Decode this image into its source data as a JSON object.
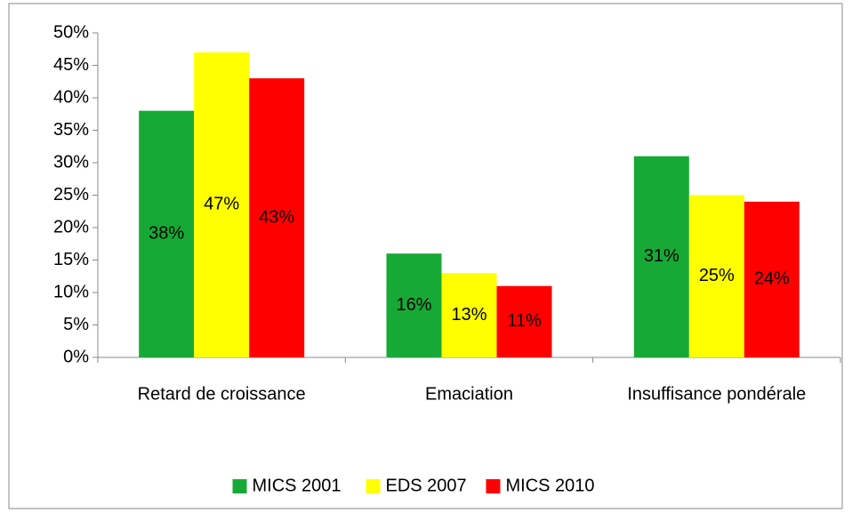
{
  "chart_data": {
    "type": "bar",
    "categories": [
      "Retard de croissance",
      "Emaciation",
      "Insuffisance pondérale"
    ],
    "series": [
      {
        "name": "MICS 2001",
        "color": "#17a935",
        "values": [
          38,
          16,
          31
        ],
        "value_labels": [
          "38%",
          "16%",
          "31%"
        ]
      },
      {
        "name": "EDS 2007",
        "color": "#ffff00",
        "values": [
          47,
          13,
          25
        ],
        "value_labels": [
          "47%",
          "13%",
          "25%"
        ]
      },
      {
        "name": "MICS 2010",
        "color": "#ff0000",
        "values": [
          43,
          11,
          24
        ],
        "value_labels": [
          "43%",
          "11%",
          "24%"
        ]
      }
    ],
    "ylim": [
      0,
      50
    ],
    "yticks": [
      {
        "value": 0,
        "label": "0%"
      },
      {
        "value": 5,
        "label": "5%"
      },
      {
        "value": 10,
        "label": "10%"
      },
      {
        "value": 15,
        "label": "15%"
      },
      {
        "value": 20,
        "label": "20%"
      },
      {
        "value": 25,
        "label": "25%"
      },
      {
        "value": 30,
        "label": "30%"
      },
      {
        "value": 35,
        "label": "35%"
      },
      {
        "value": 40,
        "label": "40%"
      },
      {
        "value": 45,
        "label": "45%"
      },
      {
        "value": 50,
        "label": "50%"
      }
    ],
    "grid": false,
    "legend": "bottom"
  }
}
